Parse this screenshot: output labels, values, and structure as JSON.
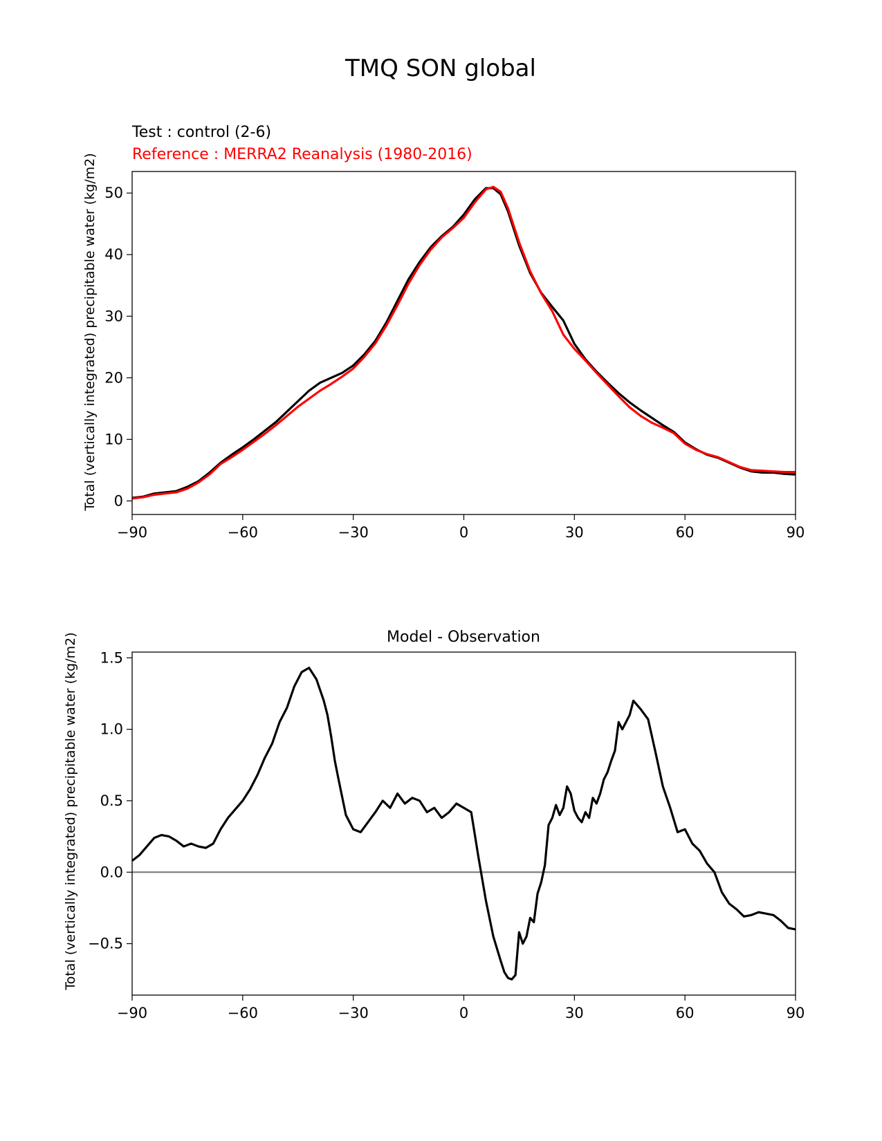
{
  "suptitle": "TMQ SON global",
  "chart_data": [
    {
      "type": "line",
      "title_test": "Test : control (2-6)",
      "title_reference": "Reference : MERRA2 Reanalysis (1980-2016)",
      "ylabel": "Total (vertically integrated) precipitable water (kg/m2)",
      "xlabel": "",
      "xlim": [
        -90,
        90
      ],
      "ylim": [
        -2.2,
        53.5
      ],
      "xticks": [
        -90,
        -60,
        -30,
        0,
        30,
        60,
        90
      ],
      "xtick_labels": [
        "−90",
        "−60",
        "−30",
        "0",
        "30",
        "60",
        "90"
      ],
      "yticks": [
        0,
        10,
        20,
        30,
        40,
        50
      ],
      "ytick_labels": [
        "0",
        "10",
        "20",
        "30",
        "40",
        "50"
      ],
      "colors": {
        "test": "#000000",
        "reference": "#ff0000"
      },
      "series": [
        {
          "name": "test",
          "x": [
            -90,
            -87,
            -84,
            -81,
            -78,
            -75,
            -72,
            -69,
            -66,
            -63,
            -60,
            -57,
            -54,
            -51,
            -48,
            -45,
            -42,
            -39,
            -36,
            -33,
            -30,
            -27,
            -24,
            -21,
            -18,
            -15,
            -12,
            -9,
            -6,
            -3,
            0,
            3,
            6,
            8,
            10,
            12,
            15,
            18,
            21,
            24,
            27,
            30,
            33,
            36,
            39,
            42,
            45,
            48,
            51,
            54,
            57,
            60,
            63,
            66,
            69,
            72,
            75,
            78,
            81,
            84,
            87,
            90
          ],
          "values": [
            0.5,
            0.7,
            1.2,
            1.4,
            1.6,
            2.3,
            3.2,
            4.6,
            6.2,
            7.5,
            8.7,
            10.0,
            11.4,
            12.8,
            14.5,
            16.2,
            17.9,
            19.2,
            20.0,
            20.8,
            22.0,
            23.8,
            26.0,
            29.0,
            32.5,
            36.0,
            38.8,
            41.2,
            43.0,
            44.5,
            46.5,
            49.0,
            50.8,
            50.8,
            49.8,
            47.0,
            41.5,
            37.0,
            33.8,
            31.5,
            29.3,
            25.5,
            23.0,
            21.0,
            19.2,
            17.5,
            16.0,
            14.7,
            13.5,
            12.3,
            11.2,
            9.5,
            8.4,
            7.5,
            7.0,
            6.2,
            5.4,
            4.8,
            4.6,
            4.6,
            4.4,
            4.3
          ]
        },
        {
          "name": "reference",
          "x": [
            -90,
            -87,
            -84,
            -81,
            -78,
            -75,
            -72,
            -69,
            -66,
            -63,
            -60,
            -57,
            -54,
            -51,
            -48,
            -45,
            -42,
            -39,
            -36,
            -33,
            -30,
            -27,
            -24,
            -21,
            -18,
            -15,
            -12,
            -9,
            -6,
            -3,
            0,
            3,
            6,
            8,
            10,
            12,
            15,
            18,
            21,
            24,
            27,
            30,
            33,
            36,
            39,
            42,
            45,
            48,
            51,
            54,
            57,
            60,
            63,
            66,
            69,
            72,
            75,
            78,
            81,
            84,
            87,
            90
          ],
          "values": [
            0.4,
            0.6,
            1.0,
            1.2,
            1.4,
            2.0,
            3.0,
            4.3,
            6.0,
            7.1,
            8.3,
            9.6,
            10.9,
            12.3,
            13.8,
            15.3,
            16.6,
            17.9,
            19.0,
            20.2,
            21.5,
            23.4,
            25.6,
            28.5,
            31.8,
            35.3,
            38.3,
            40.8,
            42.8,
            44.3,
            46.0,
            48.5,
            50.6,
            51.0,
            50.2,
            47.5,
            42.0,
            37.3,
            33.7,
            30.8,
            27.0,
            24.7,
            22.8,
            20.8,
            18.9,
            17.0,
            15.2,
            13.8,
            12.7,
            11.9,
            11.0,
            9.3,
            8.3,
            7.6,
            7.1,
            6.3,
            5.5,
            5.0,
            4.9,
            4.8,
            4.7,
            4.7
          ]
        }
      ]
    },
    {
      "type": "line",
      "title": "Model - Observation",
      "ylabel": "Total (vertically integrated) precipitable water (kg/m2)",
      "xlabel": "",
      "xlim": [
        -90,
        90
      ],
      "ylim": [
        -0.86,
        1.54
      ],
      "xticks": [
        -90,
        -60,
        -30,
        0,
        30,
        60,
        90
      ],
      "xtick_labels": [
        "−90",
        "−60",
        "−30",
        "0",
        "30",
        "60",
        "90"
      ],
      "yticks": [
        -0.5,
        0.0,
        0.5,
        1.0,
        1.5
      ],
      "ytick_labels": [
        "−0.5",
        "0.0",
        "0.5",
        "1.0",
        "1.5"
      ],
      "zero_line_color": "#808080",
      "series": [
        {
          "name": "difference",
          "color": "#000000",
          "x": [
            -90,
            -88,
            -86,
            -84,
            -82,
            -80,
            -78,
            -76,
            -74,
            -72,
            -70,
            -68,
            -66,
            -64,
            -62,
            -60,
            -58,
            -56,
            -54,
            -52,
            -50,
            -48,
            -46,
            -44,
            -42,
            -40,
            -38,
            -37,
            -36,
            -35,
            -34,
            -32,
            -30,
            -28,
            -26,
            -24,
            -22,
            -20,
            -18,
            -16,
            -14,
            -12,
            -10,
            -8,
            -6,
            -4,
            -2,
            0,
            2,
            4,
            6,
            8,
            10,
            11,
            12,
            13,
            14,
            15,
            16,
            17,
            18,
            19,
            20,
            21,
            22,
            23,
            24,
            25,
            26,
            27,
            28,
            29,
            30,
            31,
            32,
            33,
            34,
            35,
            36,
            37,
            38,
            39,
            40,
            41,
            42,
            43,
            44,
            45,
            46,
            47,
            48,
            50,
            52,
            54,
            56,
            58,
            60,
            62,
            64,
            66,
            68,
            70,
            72,
            74,
            76,
            78,
            80,
            82,
            84,
            86,
            88,
            90
          ],
          "values": [
            0.08,
            0.12,
            0.18,
            0.24,
            0.26,
            0.25,
            0.22,
            0.18,
            0.2,
            0.18,
            0.17,
            0.2,
            0.3,
            0.38,
            0.44,
            0.5,
            0.58,
            0.68,
            0.8,
            0.9,
            1.05,
            1.15,
            1.3,
            1.4,
            1.43,
            1.35,
            1.2,
            1.1,
            0.95,
            0.78,
            0.65,
            0.4,
            0.3,
            0.28,
            0.35,
            0.42,
            0.5,
            0.45,
            0.55,
            0.48,
            0.52,
            0.5,
            0.42,
            0.45,
            0.38,
            0.42,
            0.48,
            0.45,
            0.42,
            0.1,
            -0.2,
            -0.45,
            -0.62,
            -0.7,
            -0.74,
            -0.75,
            -0.72,
            -0.42,
            -0.5,
            -0.45,
            -0.32,
            -0.35,
            -0.15,
            -0.07,
            0.05,
            0.33,
            0.38,
            0.47,
            0.4,
            0.45,
            0.6,
            0.55,
            0.43,
            0.38,
            0.35,
            0.42,
            0.38,
            0.52,
            0.48,
            0.55,
            0.65,
            0.7,
            0.78,
            0.85,
            1.05,
            1.0,
            1.05,
            1.1,
            1.2,
            1.17,
            1.14,
            1.07,
            0.84,
            0.6,
            0.45,
            0.28,
            0.3,
            0.2,
            0.15,
            0.06,
            0.0,
            -0.14,
            -0.22,
            -0.26,
            -0.31,
            -0.3,
            -0.28,
            -0.29,
            -0.3,
            -0.34,
            -0.39,
            -0.4
          ]
        }
      ]
    }
  ]
}
